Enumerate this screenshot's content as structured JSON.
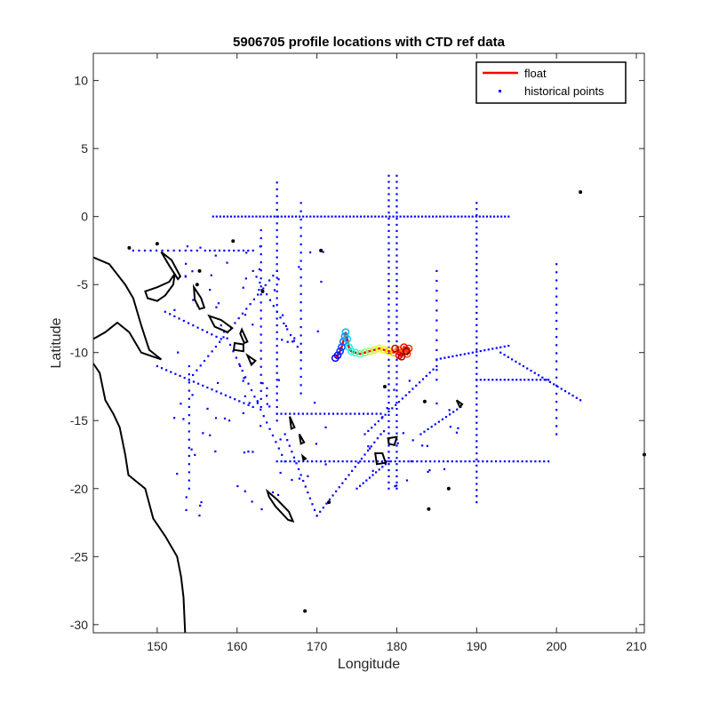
{
  "chart_data": {
    "type": "scatter",
    "title": "5906705 profile locations with CTD ref data",
    "xlabel": "Longitude",
    "ylabel": "Latitude",
    "xlim": [
      142,
      211
    ],
    "ylim": [
      -30.6,
      12
    ],
    "xticks": [
      150,
      160,
      170,
      180,
      190,
      200,
      210
    ],
    "yticks": [
      10,
      5,
      0,
      -5,
      -10,
      -15,
      -20,
      -25,
      -30
    ],
    "grid": false,
    "legend_position": "top-right",
    "series": [
      {
        "name": "float",
        "style": "line-with-circles",
        "color": "#ff0000",
        "points": [
          [
            172.3,
            -10.4
          ],
          [
            172.6,
            -10.2
          ],
          [
            172.9,
            -9.9
          ],
          [
            173.1,
            -9.6
          ],
          [
            173.3,
            -9.2
          ],
          [
            173.5,
            -8.8
          ],
          [
            173.6,
            -8.5
          ],
          [
            173.8,
            -9.0
          ],
          [
            174.0,
            -9.6
          ],
          [
            174.3,
            -9.9
          ],
          [
            174.8,
            -10.0
          ],
          [
            175.4,
            -10.1
          ],
          [
            176.0,
            -10.0
          ],
          [
            176.6,
            -9.9
          ],
          [
            177.2,
            -9.8
          ],
          [
            177.8,
            -9.7
          ],
          [
            178.4,
            -9.8
          ],
          [
            179.0,
            -9.9
          ],
          [
            179.6,
            -10.0
          ],
          [
            180.2,
            -9.8
          ],
          [
            180.8,
            -9.9
          ],
          [
            181.3,
            -10.1
          ],
          [
            181.5,
            -9.7
          ],
          [
            180.9,
            -9.6
          ],
          [
            180.3,
            -10.2
          ],
          [
            179.8,
            -9.7
          ],
          [
            180.6,
            -10.3
          ],
          [
            181.2,
            -9.9
          ]
        ]
      },
      {
        "name": "historical points",
        "style": "dots",
        "color": "#0000ff"
      }
    ],
    "colors": {
      "float_line": "#ff0000",
      "historical": "#0000ff",
      "coastline": "#000000"
    }
  }
}
